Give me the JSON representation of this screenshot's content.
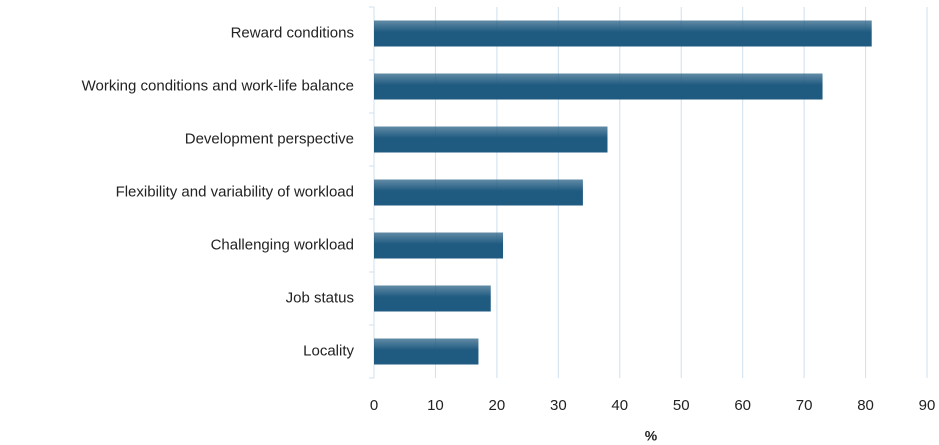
{
  "chart_data": {
    "type": "hbar",
    "categories": [
      "Reward conditions",
      "Working conditions and work-life balance",
      "Development perspective",
      "Flexibility and variability of workload",
      "Challenging workload",
      "Job status",
      "Locality"
    ],
    "values": [
      81,
      73,
      38,
      34,
      21,
      19,
      17
    ],
    "color": "#1f5a80",
    "xlabel": "%",
    "xlim": [
      0,
      90
    ],
    "xticks": [
      0,
      10,
      20,
      30,
      40,
      50,
      60,
      70,
      80,
      90
    ],
    "grid": true
  }
}
